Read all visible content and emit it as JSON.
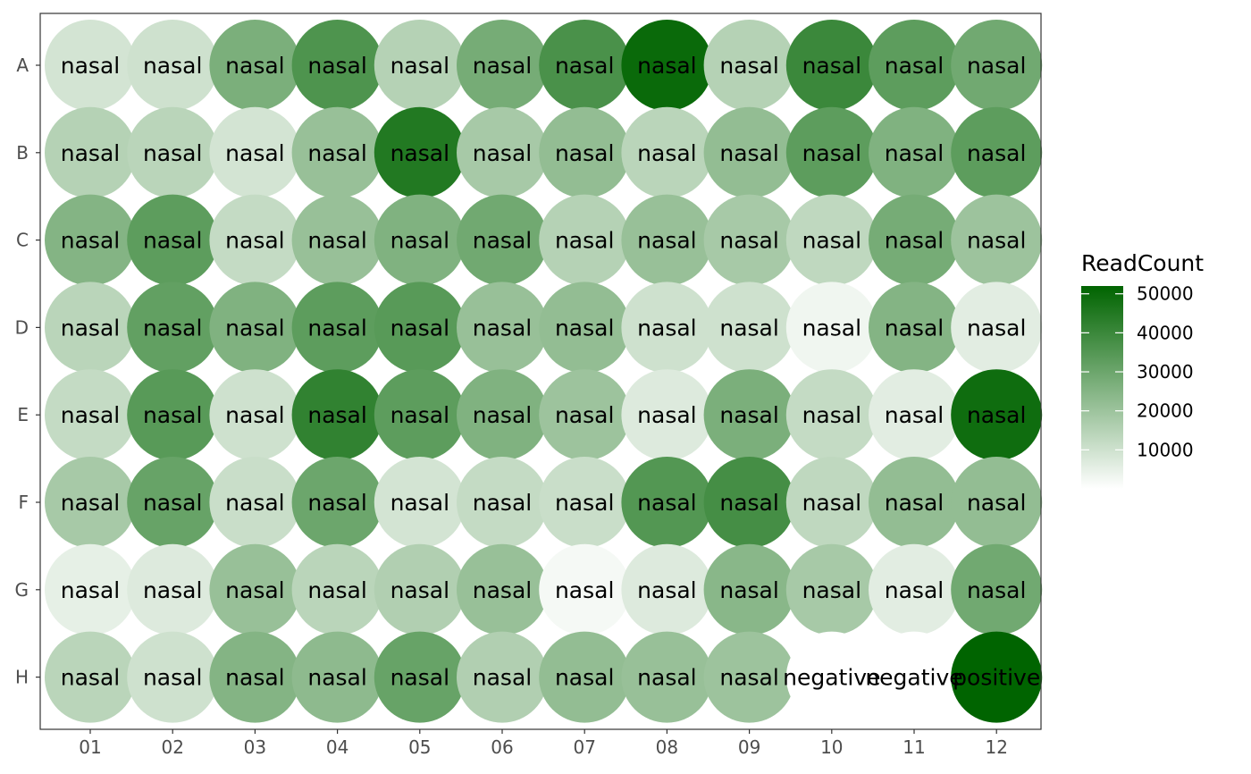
{
  "chart_data": {
    "type": "heatmap",
    "title": "",
    "xlabel": "",
    "ylabel": "",
    "columns": [
      "01",
      "02",
      "03",
      "04",
      "05",
      "06",
      "07",
      "08",
      "09",
      "10",
      "11",
      "12"
    ],
    "rows": [
      "A",
      "B",
      "C",
      "D",
      "E",
      "F",
      "G",
      "H"
    ],
    "labels": [
      [
        "nasal",
        "nasal",
        "nasal",
        "nasal",
        "nasal",
        "nasal",
        "nasal",
        "nasal",
        "nasal",
        "nasal",
        "nasal",
        "nasal"
      ],
      [
        "nasal",
        "nasal",
        "nasal",
        "nasal",
        "nasal",
        "nasal",
        "nasal",
        "nasal",
        "nasal",
        "nasal",
        "nasal",
        "nasal"
      ],
      [
        "nasal",
        "nasal",
        "nasal",
        "nasal",
        "nasal",
        "nasal",
        "nasal",
        "nasal",
        "nasal",
        "nasal",
        "nasal",
        "nasal"
      ],
      [
        "nasal",
        "nasal",
        "nasal",
        "nasal",
        "nasal",
        "nasal",
        "nasal",
        "nasal",
        "nasal",
        "nasal",
        "nasal",
        "nasal"
      ],
      [
        "nasal",
        "nasal",
        "nasal",
        "nasal",
        "nasal",
        "nasal",
        "nasal",
        "nasal",
        "nasal",
        "nasal",
        "nasal",
        "nasal"
      ],
      [
        "nasal",
        "nasal",
        "nasal",
        "nasal",
        "nasal",
        "nasal",
        "nasal",
        "nasal",
        "nasal",
        "nasal",
        "nasal",
        "nasal"
      ],
      [
        "nasal",
        "nasal",
        "nasal",
        "nasal",
        "nasal",
        "nasal",
        "nasal",
        "nasal",
        "nasal",
        "nasal",
        "nasal",
        "nasal"
      ],
      [
        "nasal",
        "nasal",
        "nasal",
        "nasal",
        "nasal",
        "nasal",
        "nasal",
        "nasal",
        "nasal",
        "negative",
        "negative",
        "positive"
      ]
    ],
    "values": [
      [
        9000,
        10000,
        27000,
        36000,
        15000,
        28000,
        37000,
        50000,
        15000,
        40000,
        33000,
        29000
      ],
      [
        15000,
        14000,
        9000,
        21000,
        45000,
        18000,
        22000,
        14000,
        22000,
        33000,
        26000,
        33000
      ],
      [
        25000,
        33000,
        12000,
        21000,
        26000,
        29000,
        15000,
        21000,
        18000,
        13000,
        28000,
        20000
      ],
      [
        14000,
        32000,
        26000,
        33000,
        34000,
        21000,
        22000,
        10000,
        10000,
        3000,
        25000,
        6000
      ],
      [
        12000,
        34000,
        10000,
        42000,
        33000,
        26000,
        20000,
        7000,
        27000,
        12000,
        6000,
        49000
      ],
      [
        18000,
        31000,
        11000,
        30000,
        9000,
        12000,
        11000,
        35000,
        38000,
        13000,
        22000,
        22000
      ],
      [
        5000,
        7000,
        21000,
        14000,
        16000,
        21000,
        2000,
        7000,
        24000,
        18000,
        6000,
        29000
      ],
      [
        14000,
        10000,
        25000,
        23000,
        31000,
        16000,
        22000,
        21000,
        20000,
        0,
        0,
        52000
      ]
    ],
    "color_scale": {
      "low": "#ffffff",
      "high": "#006400",
      "min": 0,
      "max": 52000
    },
    "legend": {
      "title": "ReadCount",
      "breaks": [
        50000,
        40000,
        30000,
        20000,
        10000
      ],
      "labels": [
        "50000",
        "40000",
        "30000",
        "20000",
        "10000"
      ],
      "placement": "right"
    },
    "grid": false
  }
}
